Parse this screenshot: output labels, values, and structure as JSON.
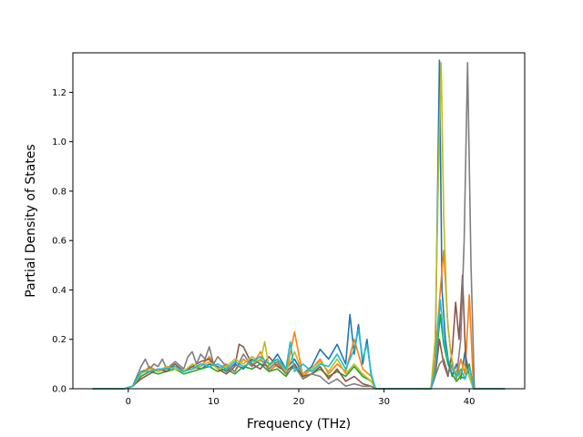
{
  "chart_data": {
    "type": "line",
    "title": "",
    "xlabel": "Frequency (THz)",
    "ylabel": "Partial Density of States",
    "xlim": [
      -6.5,
      46.5
    ],
    "ylim": [
      0,
      1.36
    ],
    "xticks": [
      0,
      10,
      20,
      30,
      40
    ],
    "yticks": [
      0.0,
      0.2,
      0.4,
      0.6,
      0.8,
      1.0,
      1.2
    ],
    "xtick_labels": [
      "0",
      "10",
      "20",
      "30",
      "40"
    ],
    "ytick_labels": [
      "0.0",
      "0.2",
      "0.4",
      "0.6",
      "0.8",
      "1.0",
      "1.2"
    ],
    "grid": false,
    "legend": "none",
    "series": [
      {
        "color": "#1f77b4",
        "x": [
          -4.2,
          -0.5,
          0.5,
          1.5,
          2.5,
          3.5,
          4.5,
          5.5,
          6.5,
          7.5,
          8.5,
          9.5,
          10.5,
          11.5,
          12.5,
          13.5,
          14.5,
          15.5,
          16.5,
          17.5,
          18.5,
          19.5,
          20.5,
          21.5,
          22.5,
          23.5,
          24.5,
          25.5,
          26.0,
          26.5,
          27.0,
          27.5,
          28.0,
          28.5,
          29.0,
          35.5,
          36.0,
          36.5,
          36.8,
          37.2,
          37.6,
          38.0,
          38.5,
          39.0,
          39.5,
          40.0,
          40.5,
          44.2
        ],
        "y": [
          0,
          0,
          0.01,
          0.07,
          0.08,
          0.07,
          0.09,
          0.08,
          0.07,
          0.09,
          0.08,
          0.1,
          0.09,
          0.07,
          0.1,
          0.08,
          0.12,
          0.1,
          0.09,
          0.14,
          0.08,
          0.12,
          0.06,
          0.09,
          0.16,
          0.12,
          0.18,
          0.1,
          0.3,
          0.14,
          0.26,
          0.1,
          0.2,
          0.05,
          0,
          0,
          0.1,
          1.33,
          0.4,
          0.2,
          0.1,
          0.05,
          0.1,
          0.04,
          0.15,
          0.05,
          0,
          0
        ]
      },
      {
        "color": "#ff7f0e",
        "x": [
          -4.2,
          -0.5,
          0.5,
          1.5,
          2.5,
          3.5,
          4.5,
          5.5,
          6.5,
          7.5,
          8.5,
          9.5,
          10.5,
          11.5,
          12.5,
          13.5,
          14.5,
          15.5,
          16.5,
          17.5,
          18.5,
          19.5,
          20.5,
          21.5,
          22.5,
          23.5,
          24.5,
          25.5,
          26.5,
          27.5,
          28.5,
          29.0,
          35.5,
          36.0,
          36.6,
          37.0,
          37.5,
          38.0,
          38.5,
          39.0,
          39.5,
          40.0,
          40.5,
          44.2
        ],
        "y": [
          0,
          0,
          0.01,
          0.06,
          0.09,
          0.07,
          0.08,
          0.1,
          0.07,
          0.08,
          0.09,
          0.13,
          0.08,
          0.1,
          0.07,
          0.12,
          0.09,
          0.15,
          0.07,
          0.1,
          0.06,
          0.23,
          0.05,
          0.08,
          0.12,
          0.06,
          0.1,
          0.07,
          0.2,
          0.08,
          0.05,
          0,
          0,
          0.12,
          0.4,
          0.56,
          0.25,
          0.1,
          0.04,
          0.12,
          0.06,
          0.38,
          0,
          0
        ]
      },
      {
        "color": "#2ca02c",
        "x": [
          -4.2,
          -0.5,
          0.5,
          1.5,
          2.5,
          3.5,
          4.5,
          5.5,
          6.5,
          7.5,
          8.5,
          9.5,
          10.5,
          11.5,
          12.5,
          13.5,
          14.5,
          15.5,
          16.5,
          17.5,
          18.5,
          19.5,
          20.5,
          21.5,
          22.5,
          23.5,
          24.5,
          25.5,
          26.5,
          27.5,
          28.5,
          29.0,
          35.5,
          36.0,
          36.6,
          37.0,
          37.5,
          38.0,
          38.5,
          39.0,
          39.5,
          40.0,
          40.5,
          44.2
        ],
        "y": [
          0,
          0,
          0.01,
          0.05,
          0.07,
          0.06,
          0.07,
          0.08,
          0.06,
          0.07,
          0.08,
          0.09,
          0.07,
          0.08,
          0.06,
          0.09,
          0.08,
          0.1,
          0.07,
          0.08,
          0.05,
          0.1,
          0.04,
          0.06,
          0.08,
          0.05,
          0.07,
          0.05,
          0.09,
          0.05,
          0.03,
          0,
          0,
          0.08,
          0.3,
          0.18,
          0.1,
          0.06,
          0.03,
          0.05,
          0.04,
          0.1,
          0,
          0
        ]
      },
      {
        "color": "#8c564b",
        "x": [
          -4.2,
          -0.5,
          0.5,
          1.5,
          2.5,
          3.5,
          4.5,
          5.5,
          6.5,
          7.5,
          8.5,
          9.5,
          10.5,
          11.5,
          12.5,
          13.0,
          13.5,
          14.5,
          15.5,
          16.5,
          17.5,
          18.5,
          19.5,
          20.5,
          21.5,
          22.5,
          23.5,
          24.5,
          25.5,
          26.5,
          27.5,
          28.5,
          29.0,
          35.5,
          36.0,
          36.5,
          37.0,
          37.5,
          38.0,
          38.4,
          38.8,
          39.2,
          39.6,
          40.0,
          40.5,
          44.2
        ],
        "y": [
          0,
          0,
          0.01,
          0.04,
          0.06,
          0.08,
          0.07,
          0.1,
          0.07,
          0.09,
          0.11,
          0.12,
          0.08,
          0.06,
          0.09,
          0.18,
          0.17,
          0.1,
          0.08,
          0.13,
          0.09,
          0.07,
          0.1,
          0.05,
          0.06,
          0.09,
          0.04,
          0.08,
          0.03,
          0.05,
          0.02,
          0.01,
          0,
          0,
          0.05,
          0.2,
          0.1,
          0.05,
          0.15,
          0.35,
          0.2,
          0.46,
          0.1,
          0.05,
          0,
          0
        ]
      },
      {
        "color": "#7f7f7f",
        "x": [
          -4.2,
          -0.5,
          0.5,
          1.5,
          2.0,
          2.5,
          3.0,
          3.5,
          4.0,
          4.5,
          5.5,
          6.5,
          7.0,
          7.5,
          8.0,
          8.5,
          9.0,
          9.5,
          10.0,
          10.5,
          11.5,
          12.5,
          13.5,
          14.5,
          15.5,
          16.5,
          17.5,
          18.5,
          19.5,
          20.5,
          21.5,
          22.5,
          23.5,
          24.5,
          25.5,
          26.5,
          27.5,
          28.5,
          29.0,
          35.5,
          36.0,
          36.5,
          37.0,
          37.5,
          38.0,
          38.5,
          39.0,
          39.4,
          39.8,
          40.2,
          40.6,
          44.2
        ],
        "y": [
          0,
          0,
          0.01,
          0.09,
          0.12,
          0.08,
          0.1,
          0.09,
          0.12,
          0.08,
          0.11,
          0.08,
          0.13,
          0.15,
          0.1,
          0.14,
          0.12,
          0.17,
          0.1,
          0.13,
          0.09,
          0.07,
          0.14,
          0.09,
          0.12,
          0.08,
          0.11,
          0.06,
          0.09,
          0.04,
          0.06,
          0.05,
          0.02,
          0.04,
          0.01,
          0.02,
          0.01,
          0.01,
          0,
          0,
          0.05,
          0.1,
          0.12,
          0.06,
          0.1,
          0.05,
          0.2,
          0.6,
          1.32,
          0.5,
          0,
          0
        ]
      },
      {
        "color": "#bcbd22",
        "x": [
          -4.2,
          -0.5,
          0.5,
          1.5,
          2.5,
          3.5,
          4.5,
          5.5,
          6.5,
          7.5,
          8.5,
          9.5,
          10.5,
          11.5,
          12.5,
          13.5,
          14.5,
          15.5,
          16.0,
          16.5,
          17.5,
          18.5,
          19.5,
          20.5,
          21.5,
          22.5,
          23.5,
          24.5,
          25.5,
          26.5,
          27.5,
          28.5,
          29.0,
          35.5,
          36.0,
          36.4,
          36.7,
          37.0,
          37.4,
          37.8,
          38.2,
          38.8,
          39.4,
          40.0,
          40.5,
          44.2
        ],
        "y": [
          0,
          0,
          0.01,
          0.06,
          0.08,
          0.07,
          0.09,
          0.08,
          0.07,
          0.1,
          0.09,
          0.11,
          0.08,
          0.09,
          0.12,
          0.1,
          0.13,
          0.11,
          0.19,
          0.09,
          0.12,
          0.07,
          0.15,
          0.06,
          0.08,
          0.11,
          0.07,
          0.12,
          0.06,
          0.1,
          0.06,
          0.03,
          0,
          0,
          0.2,
          0.9,
          1.32,
          0.7,
          0.3,
          0.15,
          0.08,
          0.05,
          0.1,
          0.05,
          0,
          0
        ]
      },
      {
        "color": "#17becf",
        "x": [
          -4.2,
          -0.5,
          0.5,
          1.5,
          2.5,
          3.5,
          4.5,
          5.5,
          6.5,
          7.5,
          8.5,
          9.5,
          10.5,
          11.5,
          12.5,
          13.5,
          14.5,
          15.5,
          16.5,
          17.5,
          18.5,
          19.0,
          19.5,
          20.5,
          21.5,
          22.5,
          23.5,
          24.5,
          25.5,
          26.5,
          27.0,
          27.5,
          28.0,
          28.5,
          29.0,
          35.5,
          36.0,
          36.6,
          37.0,
          37.5,
          38.0,
          38.5,
          39.0,
          39.5,
          40.0,
          40.5,
          44.2
        ],
        "y": [
          0,
          0,
          0.01,
          0.07,
          0.07,
          0.08,
          0.08,
          0.09,
          0.07,
          0.08,
          0.1,
          0.09,
          0.1,
          0.08,
          0.11,
          0.09,
          0.11,
          0.13,
          0.1,
          0.12,
          0.08,
          0.19,
          0.07,
          0.1,
          0.07,
          0.1,
          0.09,
          0.14,
          0.08,
          0.16,
          0.24,
          0.12,
          0.18,
          0.06,
          0,
          0,
          0.08,
          0.36,
          0.2,
          0.12,
          0.08,
          0.05,
          0.08,
          0.04,
          0.09,
          0,
          0
        ]
      }
    ]
  }
}
